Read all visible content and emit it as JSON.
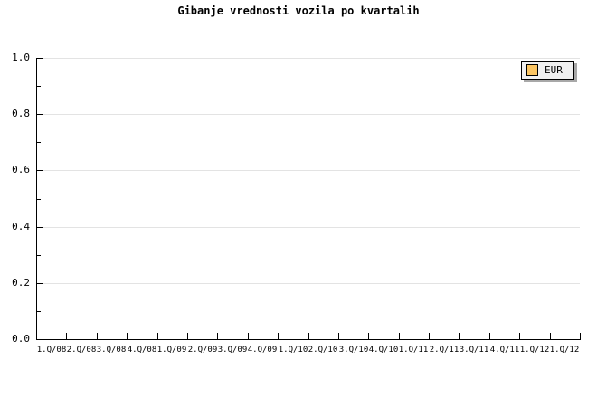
{
  "title": "Gibanje vrednosti vozila po kvartalih",
  "legend": {
    "label": "EUR",
    "swatch_color": "#fbc563",
    "position": "top-right"
  },
  "colors": {
    "background": "#ffffff",
    "axis": "#000000",
    "grid": "#e3e3e3",
    "text": "#000000",
    "legend_bg": "#f0f0f0",
    "legend_border": "#000000",
    "legend_shadow": "#a8a8a8"
  },
  "chart_data": {
    "type": "bar",
    "title": "Gibanje vrednosti vozila po kvartalih",
    "xlabel": "",
    "ylabel": "",
    "categories": [
      "1.Q/08",
      "2.Q/08",
      "3.Q/08",
      "4.Q/08",
      "1.Q/09",
      "2.Q/09",
      "3.Q/09",
      "4.Q/09",
      "1.Q/10",
      "2.Q/10",
      "3.Q/10",
      "4.Q/10",
      "1.Q/11",
      "2.Q/11",
      "3.Q/11",
      "4.Q/11",
      "1.Q/12",
      "1.Q/12"
    ],
    "series": [
      {
        "name": "EUR",
        "color": "#fbc563",
        "values": []
      }
    ],
    "plot_empty": true,
    "ylim": [
      0.0,
      1.0
    ],
    "y_major_ticks": [
      0.0,
      0.2,
      0.4,
      0.6,
      0.8,
      1.0
    ],
    "y_tick_labels": [
      "0.0",
      "0.2",
      "0.4",
      "0.6",
      "0.8",
      "1.0"
    ],
    "y_minor_ticks": [
      0.1,
      0.3,
      0.5,
      0.7,
      0.9
    ],
    "grid": "horizontal-major-only",
    "legend_position": "top-right"
  }
}
